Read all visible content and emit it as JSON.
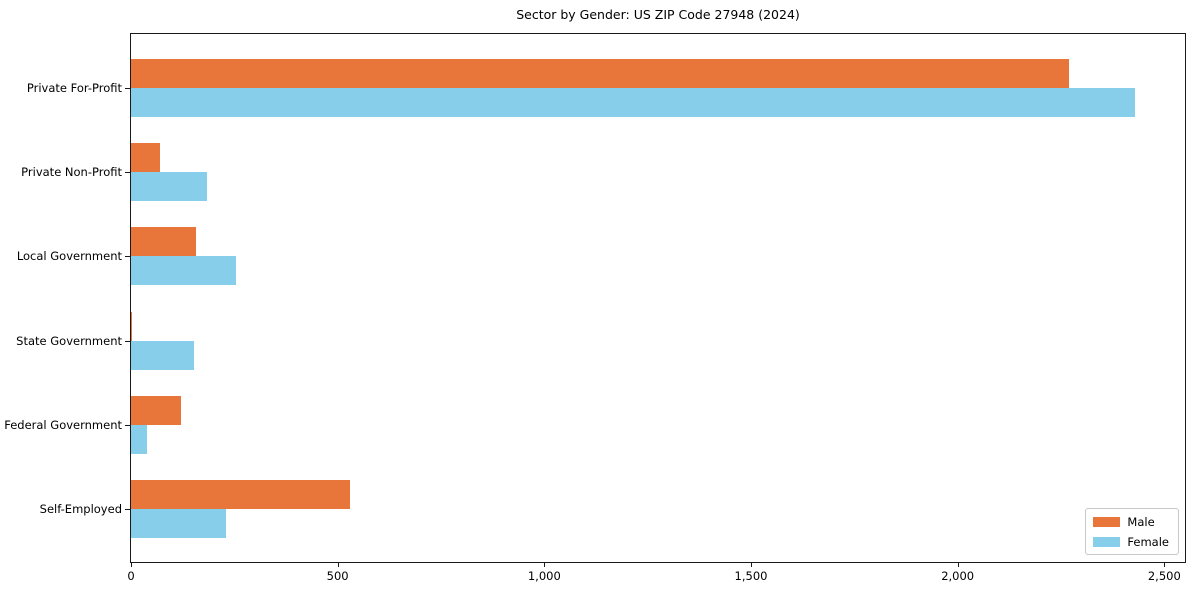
{
  "chart_data": {
    "type": "bar",
    "orientation": "horizontal",
    "title": "Sector by Gender: US ZIP Code 27948 (2024)",
    "xlabel": "",
    "ylabel": "",
    "grid": false,
    "categories": [
      "Private For-Profit",
      "Private Non-Profit",
      "Local Government",
      "State Government",
      "Federal Government",
      "Self-Employed"
    ],
    "series": [
      {
        "name": "Male",
        "color": "#e8763a",
        "values": [
          2270,
          70,
          157,
          3,
          120,
          531
        ]
      },
      {
        "name": "Female",
        "color": "#87ceeb",
        "values": [
          2430,
          184,
          255,
          152,
          38,
          229
        ]
      }
    ],
    "xlim": [
      0,
      2550
    ],
    "x_ticks": {
      "values": [
        0,
        500,
        1000,
        1500,
        2000,
        2500
      ],
      "labels": [
        "0",
        "500",
        "1,000",
        "1,500",
        "2,000",
        "2,500"
      ]
    },
    "legend": {
      "position": "lower right",
      "entries": [
        "Male",
        "Female"
      ]
    }
  }
}
